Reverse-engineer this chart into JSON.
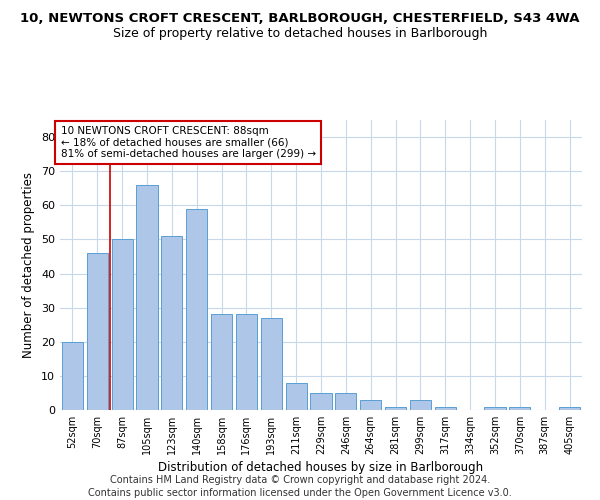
{
  "title_line1": "10, NEWTONS CROFT CRESCENT, BARLBOROUGH, CHESTERFIELD, S43 4WA",
  "title_line2": "Size of property relative to detached houses in Barlborough",
  "xlabel": "Distribution of detached houses by size in Barlborough",
  "ylabel": "Number of detached properties",
  "categories": [
    "52sqm",
    "70sqm",
    "87sqm",
    "105sqm",
    "123sqm",
    "140sqm",
    "158sqm",
    "176sqm",
    "193sqm",
    "211sqm",
    "229sqm",
    "246sqm",
    "264sqm",
    "281sqm",
    "299sqm",
    "317sqm",
    "334sqm",
    "352sqm",
    "370sqm",
    "387sqm",
    "405sqm"
  ],
  "values": [
    20,
    46,
    50,
    66,
    51,
    59,
    28,
    28,
    27,
    8,
    5,
    5,
    3,
    1,
    3,
    1,
    0,
    1,
    1,
    0,
    1
  ],
  "bar_color": "#aec6e8",
  "bar_edge_color": "#5a9fd4",
  "grid_color": "#c8d8e8",
  "annotation_line1": "10 NEWTONS CROFT CRESCENT: 88sqm",
  "annotation_line2": "← 18% of detached houses are smaller (66)",
  "annotation_line3": "81% of semi-detached houses are larger (299) →",
  "vline_color": "#cc0000",
  "annotation_box_color": "#ffffff",
  "annotation_box_edge": "#cc0000",
  "footer_line1": "Contains HM Land Registry data © Crown copyright and database right 2024.",
  "footer_line2": "Contains public sector information licensed under the Open Government Licence v3.0.",
  "ylim": [
    0,
    85
  ],
  "yticks": [
    0,
    10,
    20,
    30,
    40,
    50,
    60,
    70,
    80
  ],
  "title_fontsize": 9.5,
  "subtitle_fontsize": 9,
  "footer_fontsize": 7
}
